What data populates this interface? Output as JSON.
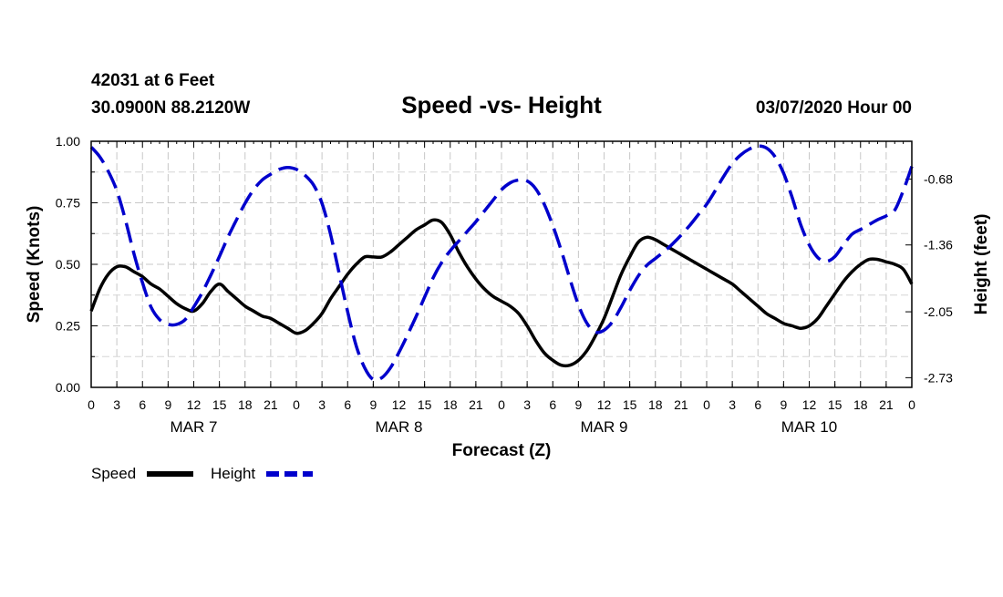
{
  "header": {
    "station_line": "42031 at 6 Feet",
    "location_line": "30.0900N 88.2120W",
    "datetime_line": "03/07/2020 Hour 00"
  },
  "chart_data": {
    "type": "line",
    "title": "Speed -vs- Height",
    "xlabel": "Forecast (Z)",
    "ylabel": "Speed (Knots)",
    "y2label": "Height (feet)",
    "x_hours_range": [
      0,
      96
    ],
    "x_tick_step_hours": 3,
    "x_tick_labels": [
      "0",
      "3",
      "6",
      "9",
      "12",
      "15",
      "18",
      "21",
      "0",
      "3",
      "6",
      "9",
      "12",
      "15",
      "18",
      "21",
      "0",
      "3",
      "6",
      "9",
      "12",
      "15",
      "18",
      "21",
      "0",
      "3",
      "6",
      "9",
      "12",
      "15",
      "18",
      "21",
      "0"
    ],
    "day_labels": [
      {
        "text": "MAR 7",
        "hour": 12
      },
      {
        "text": "MAR 8",
        "hour": 36
      },
      {
        "text": "MAR 9",
        "hour": 60
      },
      {
        "text": "MAR 10",
        "hour": 84
      }
    ],
    "ylim": [
      0,
      1.0
    ],
    "y_ticks": [
      0.0,
      0.25,
      0.5,
      0.75,
      1.0
    ],
    "y_tick_labels": [
      "0.00",
      "0.25",
      "0.50",
      "0.75",
      "1.00"
    ],
    "y2lim": [
      -2.83,
      -0.29
    ],
    "y2_ticks": [
      -0.68,
      -1.36,
      -2.05,
      -2.73
    ],
    "y2_tick_labels": [
      "-0.68",
      "-1.36",
      "-2.05",
      "-2.73"
    ],
    "grid": true,
    "legend_position": "bottom-left",
    "series": [
      {
        "name": "Speed",
        "axis": "left",
        "color": "#000000",
        "style": "solid",
        "points": [
          [
            0,
            0.31
          ],
          [
            1,
            0.4
          ],
          [
            2,
            0.46
          ],
          [
            3,
            0.49
          ],
          [
            4,
            0.49
          ],
          [
            5,
            0.47
          ],
          [
            6,
            0.45
          ],
          [
            7,
            0.42
          ],
          [
            8,
            0.4
          ],
          [
            9,
            0.37
          ],
          [
            10,
            0.34
          ],
          [
            11,
            0.32
          ],
          [
            12,
            0.31
          ],
          [
            13,
            0.34
          ],
          [
            14,
            0.39
          ],
          [
            15,
            0.42
          ],
          [
            16,
            0.39
          ],
          [
            17,
            0.36
          ],
          [
            18,
            0.33
          ],
          [
            19,
            0.31
          ],
          [
            20,
            0.29
          ],
          [
            21,
            0.28
          ],
          [
            22,
            0.26
          ],
          [
            23,
            0.24
          ],
          [
            24,
            0.22
          ],
          [
            25,
            0.23
          ],
          [
            26,
            0.26
          ],
          [
            27,
            0.3
          ],
          [
            28,
            0.36
          ],
          [
            29,
            0.41
          ],
          [
            30,
            0.46
          ],
          [
            31,
            0.5
          ],
          [
            32,
            0.53
          ],
          [
            33,
            0.53
          ],
          [
            34,
            0.53
          ],
          [
            35,
            0.55
          ],
          [
            36,
            0.58
          ],
          [
            37,
            0.61
          ],
          [
            38,
            0.64
          ],
          [
            39,
            0.66
          ],
          [
            40,
            0.68
          ],
          [
            41,
            0.67
          ],
          [
            42,
            0.62
          ],
          [
            43,
            0.55
          ],
          [
            44,
            0.49
          ],
          [
            45,
            0.44
          ],
          [
            46,
            0.4
          ],
          [
            47,
            0.37
          ],
          [
            48,
            0.35
          ],
          [
            49,
            0.33
          ],
          [
            50,
            0.3
          ],
          [
            51,
            0.25
          ],
          [
            52,
            0.19
          ],
          [
            53,
            0.14
          ],
          [
            54,
            0.11
          ],
          [
            55,
            0.09
          ],
          [
            56,
            0.09
          ],
          [
            57,
            0.11
          ],
          [
            58,
            0.15
          ],
          [
            59,
            0.21
          ],
          [
            60,
            0.28
          ],
          [
            61,
            0.37
          ],
          [
            62,
            0.46
          ],
          [
            63,
            0.53
          ],
          [
            64,
            0.59
          ],
          [
            65,
            0.61
          ],
          [
            66,
            0.6
          ],
          [
            67,
            0.58
          ],
          [
            68,
            0.56
          ],
          [
            69,
            0.54
          ],
          [
            70,
            0.52
          ],
          [
            71,
            0.5
          ],
          [
            72,
            0.48
          ],
          [
            73,
            0.46
          ],
          [
            74,
            0.44
          ],
          [
            75,
            0.42
          ],
          [
            76,
            0.39
          ],
          [
            77,
            0.36
          ],
          [
            78,
            0.33
          ],
          [
            79,
            0.3
          ],
          [
            80,
            0.28
          ],
          [
            81,
            0.26
          ],
          [
            82,
            0.25
          ],
          [
            83,
            0.24
          ],
          [
            84,
            0.25
          ],
          [
            85,
            0.28
          ],
          [
            86,
            0.33
          ],
          [
            87,
            0.38
          ],
          [
            88,
            0.43
          ],
          [
            89,
            0.47
          ],
          [
            90,
            0.5
          ],
          [
            91,
            0.52
          ],
          [
            92,
            0.52
          ],
          [
            93,
            0.51
          ],
          [
            94,
            0.5
          ],
          [
            95,
            0.48
          ],
          [
            96,
            0.42
          ]
        ]
      },
      {
        "name": "Height",
        "axis": "right",
        "color": "#0000cc",
        "style": "dashed",
        "points": [
          [
            0,
            -0.35
          ],
          [
            1,
            -0.45
          ],
          [
            2,
            -0.6
          ],
          [
            3,
            -0.8
          ],
          [
            4,
            -1.1
          ],
          [
            5,
            -1.45
          ],
          [
            6,
            -1.75
          ],
          [
            7,
            -2.0
          ],
          [
            8,
            -2.13
          ],
          [
            9,
            -2.18
          ],
          [
            10,
            -2.18
          ],
          [
            11,
            -2.13
          ],
          [
            12,
            -2.0
          ],
          [
            13,
            -1.85
          ],
          [
            14,
            -1.67
          ],
          [
            15,
            -1.48
          ],
          [
            16,
            -1.28
          ],
          [
            17,
            -1.1
          ],
          [
            18,
            -0.93
          ],
          [
            19,
            -0.79
          ],
          [
            20,
            -0.69
          ],
          [
            21,
            -0.63
          ],
          [
            22,
            -0.58
          ],
          [
            23,
            -0.56
          ],
          [
            24,
            -0.58
          ],
          [
            25,
            -0.64
          ],
          [
            26,
            -0.74
          ],
          [
            27,
            -0.93
          ],
          [
            28,
            -1.25
          ],
          [
            29,
            -1.65
          ],
          [
            30,
            -2.05
          ],
          [
            31,
            -2.4
          ],
          [
            32,
            -2.63
          ],
          [
            33,
            -2.75
          ],
          [
            34,
            -2.73
          ],
          [
            35,
            -2.63
          ],
          [
            36,
            -2.47
          ],
          [
            37,
            -2.29
          ],
          [
            38,
            -2.1
          ],
          [
            39,
            -1.9
          ],
          [
            40,
            -1.7
          ],
          [
            41,
            -1.54
          ],
          [
            42,
            -1.42
          ],
          [
            43,
            -1.32
          ],
          [
            44,
            -1.22
          ],
          [
            45,
            -1.12
          ],
          [
            46,
            -1.01
          ],
          [
            47,
            -0.9
          ],
          [
            48,
            -0.79
          ],
          [
            49,
            -0.72
          ],
          [
            50,
            -0.69
          ],
          [
            51,
            -0.7
          ],
          [
            52,
            -0.78
          ],
          [
            53,
            -0.94
          ],
          [
            54,
            -1.16
          ],
          [
            55,
            -1.42
          ],
          [
            56,
            -1.71
          ],
          [
            57,
            -1.98
          ],
          [
            58,
            -2.17
          ],
          [
            59,
            -2.26
          ],
          [
            60,
            -2.24
          ],
          [
            61,
            -2.15
          ],
          [
            62,
            -2.0
          ],
          [
            63,
            -1.83
          ],
          [
            64,
            -1.68
          ],
          [
            65,
            -1.57
          ],
          [
            66,
            -1.5
          ],
          [
            67,
            -1.43
          ],
          [
            68,
            -1.35
          ],
          [
            69,
            -1.26
          ],
          [
            70,
            -1.16
          ],
          [
            71,
            -1.05
          ],
          [
            72,
            -0.94
          ],
          [
            73,
            -0.8
          ],
          [
            74,
            -0.65
          ],
          [
            75,
            -0.52
          ],
          [
            76,
            -0.43
          ],
          [
            77,
            -0.37
          ],
          [
            78,
            -0.34
          ],
          [
            79,
            -0.36
          ],
          [
            80,
            -0.45
          ],
          [
            81,
            -0.62
          ],
          [
            82,
            -0.87
          ],
          [
            83,
            -1.15
          ],
          [
            84,
            -1.36
          ],
          [
            85,
            -1.49
          ],
          [
            86,
            -1.53
          ],
          [
            87,
            -1.48
          ],
          [
            88,
            -1.36
          ],
          [
            89,
            -1.25
          ],
          [
            90,
            -1.2
          ],
          [
            91,
            -1.15
          ],
          [
            92,
            -1.1
          ],
          [
            93,
            -1.06
          ],
          [
            94,
            -1.0
          ],
          [
            95,
            -0.8
          ],
          [
            96,
            -0.55
          ]
        ]
      }
    ]
  }
}
